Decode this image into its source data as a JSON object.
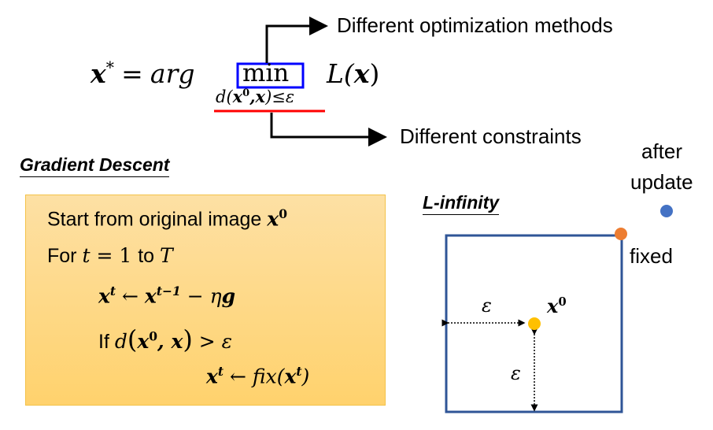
{
  "formula": {
    "lhs": "x",
    "lhs_sup": "*",
    "equals": "=",
    "arg": "arg",
    "min": "min",
    "sub_d": "d(",
    "sub_x0": "x",
    "sub_x0_sup": "0",
    "sub_comma_x": ",x",
    "sub_rest": ")≤ε",
    "loss": "L(",
    "loss_x": "x",
    "loss_close": ")"
  },
  "annotations": {
    "methods": "Different optimization methods",
    "constraints": "Different constraints"
  },
  "gradient_descent": {
    "heading": "Gradient Descent",
    "line1_text": "Start from original image ",
    "line1_var": "x",
    "line1_sup": "0",
    "line2_for": "For ",
    "line2_t": "t",
    "line2_eq": " = 1 ",
    "line2_to": "to ",
    "line2_T": "T",
    "line3_lhs": "x",
    "line3_lhs_sup": "t",
    "line3_arrow": " ← ",
    "line3_rhs": "x",
    "line3_rhs_sup": "t−1",
    "line3_minus": " − ",
    "line3_eta": "η",
    "line3_g": "g",
    "line4_if": "If ",
    "line4_d": "d",
    "line4_open": "(",
    "line4_x0": "x",
    "line4_x0_sup": "0",
    "line4_comma_x": ", x",
    "line4_close": ")",
    "line4_gt": " > ε",
    "line5_lhs": "x",
    "line5_lhs_sup": "t",
    "line5_arrow": " ← ",
    "line5_fix": "fix(",
    "line5_x": "x",
    "line5_x_sup": "t",
    "line5_close": ")"
  },
  "linf": {
    "heading": "L-infinity",
    "after_update_1": "after",
    "after_update_2": "update",
    "fixed": "fixed",
    "x0": "x",
    "x0_sup": "0",
    "eps_h": "ε",
    "eps_v": "ε"
  },
  "colors": {
    "min_box": "#0000ff",
    "constraint_underline": "#ff0000",
    "square": "#2f5597",
    "fixed_dot": "#ed7d31",
    "update_dot": "#4472c4",
    "origin_dot": "#ffc000",
    "box_fill_top": "#fde0a4",
    "box_fill_bottom": "#ffd26d"
  }
}
